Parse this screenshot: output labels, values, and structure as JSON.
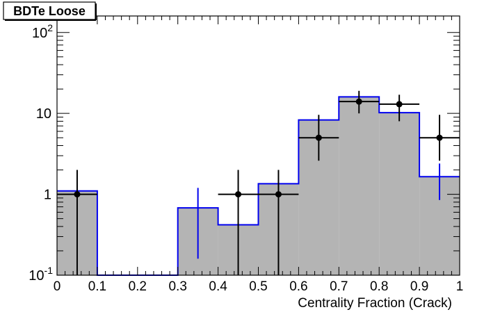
{
  "chart_data": {
    "type": "bar",
    "title": "BDTe Loose",
    "xlabel": "Centrality Fraction (Crack)",
    "ylabel": "",
    "xlim": [
      0,
      1
    ],
    "ylim": [
      0.1,
      160
    ],
    "yscale": "log",
    "grid": false,
    "x_ticks": [
      "0",
      "0.1",
      "0.2",
      "0.3",
      "0.4",
      "0.5",
      "0.6",
      "0.7",
      "0.8",
      "0.9",
      "1"
    ],
    "y_ticks": [
      {
        "value": 0.1,
        "base": "10",
        "exp": "-1"
      },
      {
        "value": 1,
        "base": "1",
        "exp": ""
      },
      {
        "value": 10,
        "base": "10",
        "exp": ""
      },
      {
        "value": 100,
        "base": "10",
        "exp": "2"
      }
    ],
    "bin_edges": [
      0,
      0.1,
      0.2,
      0.3,
      0.4,
      0.5,
      0.6,
      0.7,
      0.8,
      0.9,
      1.0
    ],
    "series": [
      {
        "kind": "histogram-filled",
        "values": [
          1.1,
          0.1,
          0.1,
          0.68,
          0.42,
          1.35,
          8.3,
          16.0,
          10.2,
          1.65
        ],
        "errors_low": [
          null,
          null,
          null,
          0.52,
          null,
          null,
          null,
          null,
          null,
          0.8
        ],
        "errors_high": [
          null,
          null,
          null,
          0.52,
          null,
          null,
          null,
          null,
          null,
          0.75
        ],
        "fill_color": "#b4b4b4",
        "line_color": "#0000ee"
      },
      {
        "kind": "points",
        "x": [
          0.05,
          0.45,
          0.55,
          0.65,
          0.75,
          0.85,
          0.95
        ],
        "y": [
          1,
          1,
          1,
          5,
          14,
          13,
          5
        ],
        "y_err_low": [
          0.9,
          0.9,
          0.9,
          2.4,
          4.0,
          5.0,
          2.4
        ],
        "y_err_high": [
          1.0,
          1.0,
          1.0,
          4.6,
          5.0,
          4.0,
          4.6
        ],
        "x_err": 0.05,
        "color": "#000000"
      }
    ]
  }
}
